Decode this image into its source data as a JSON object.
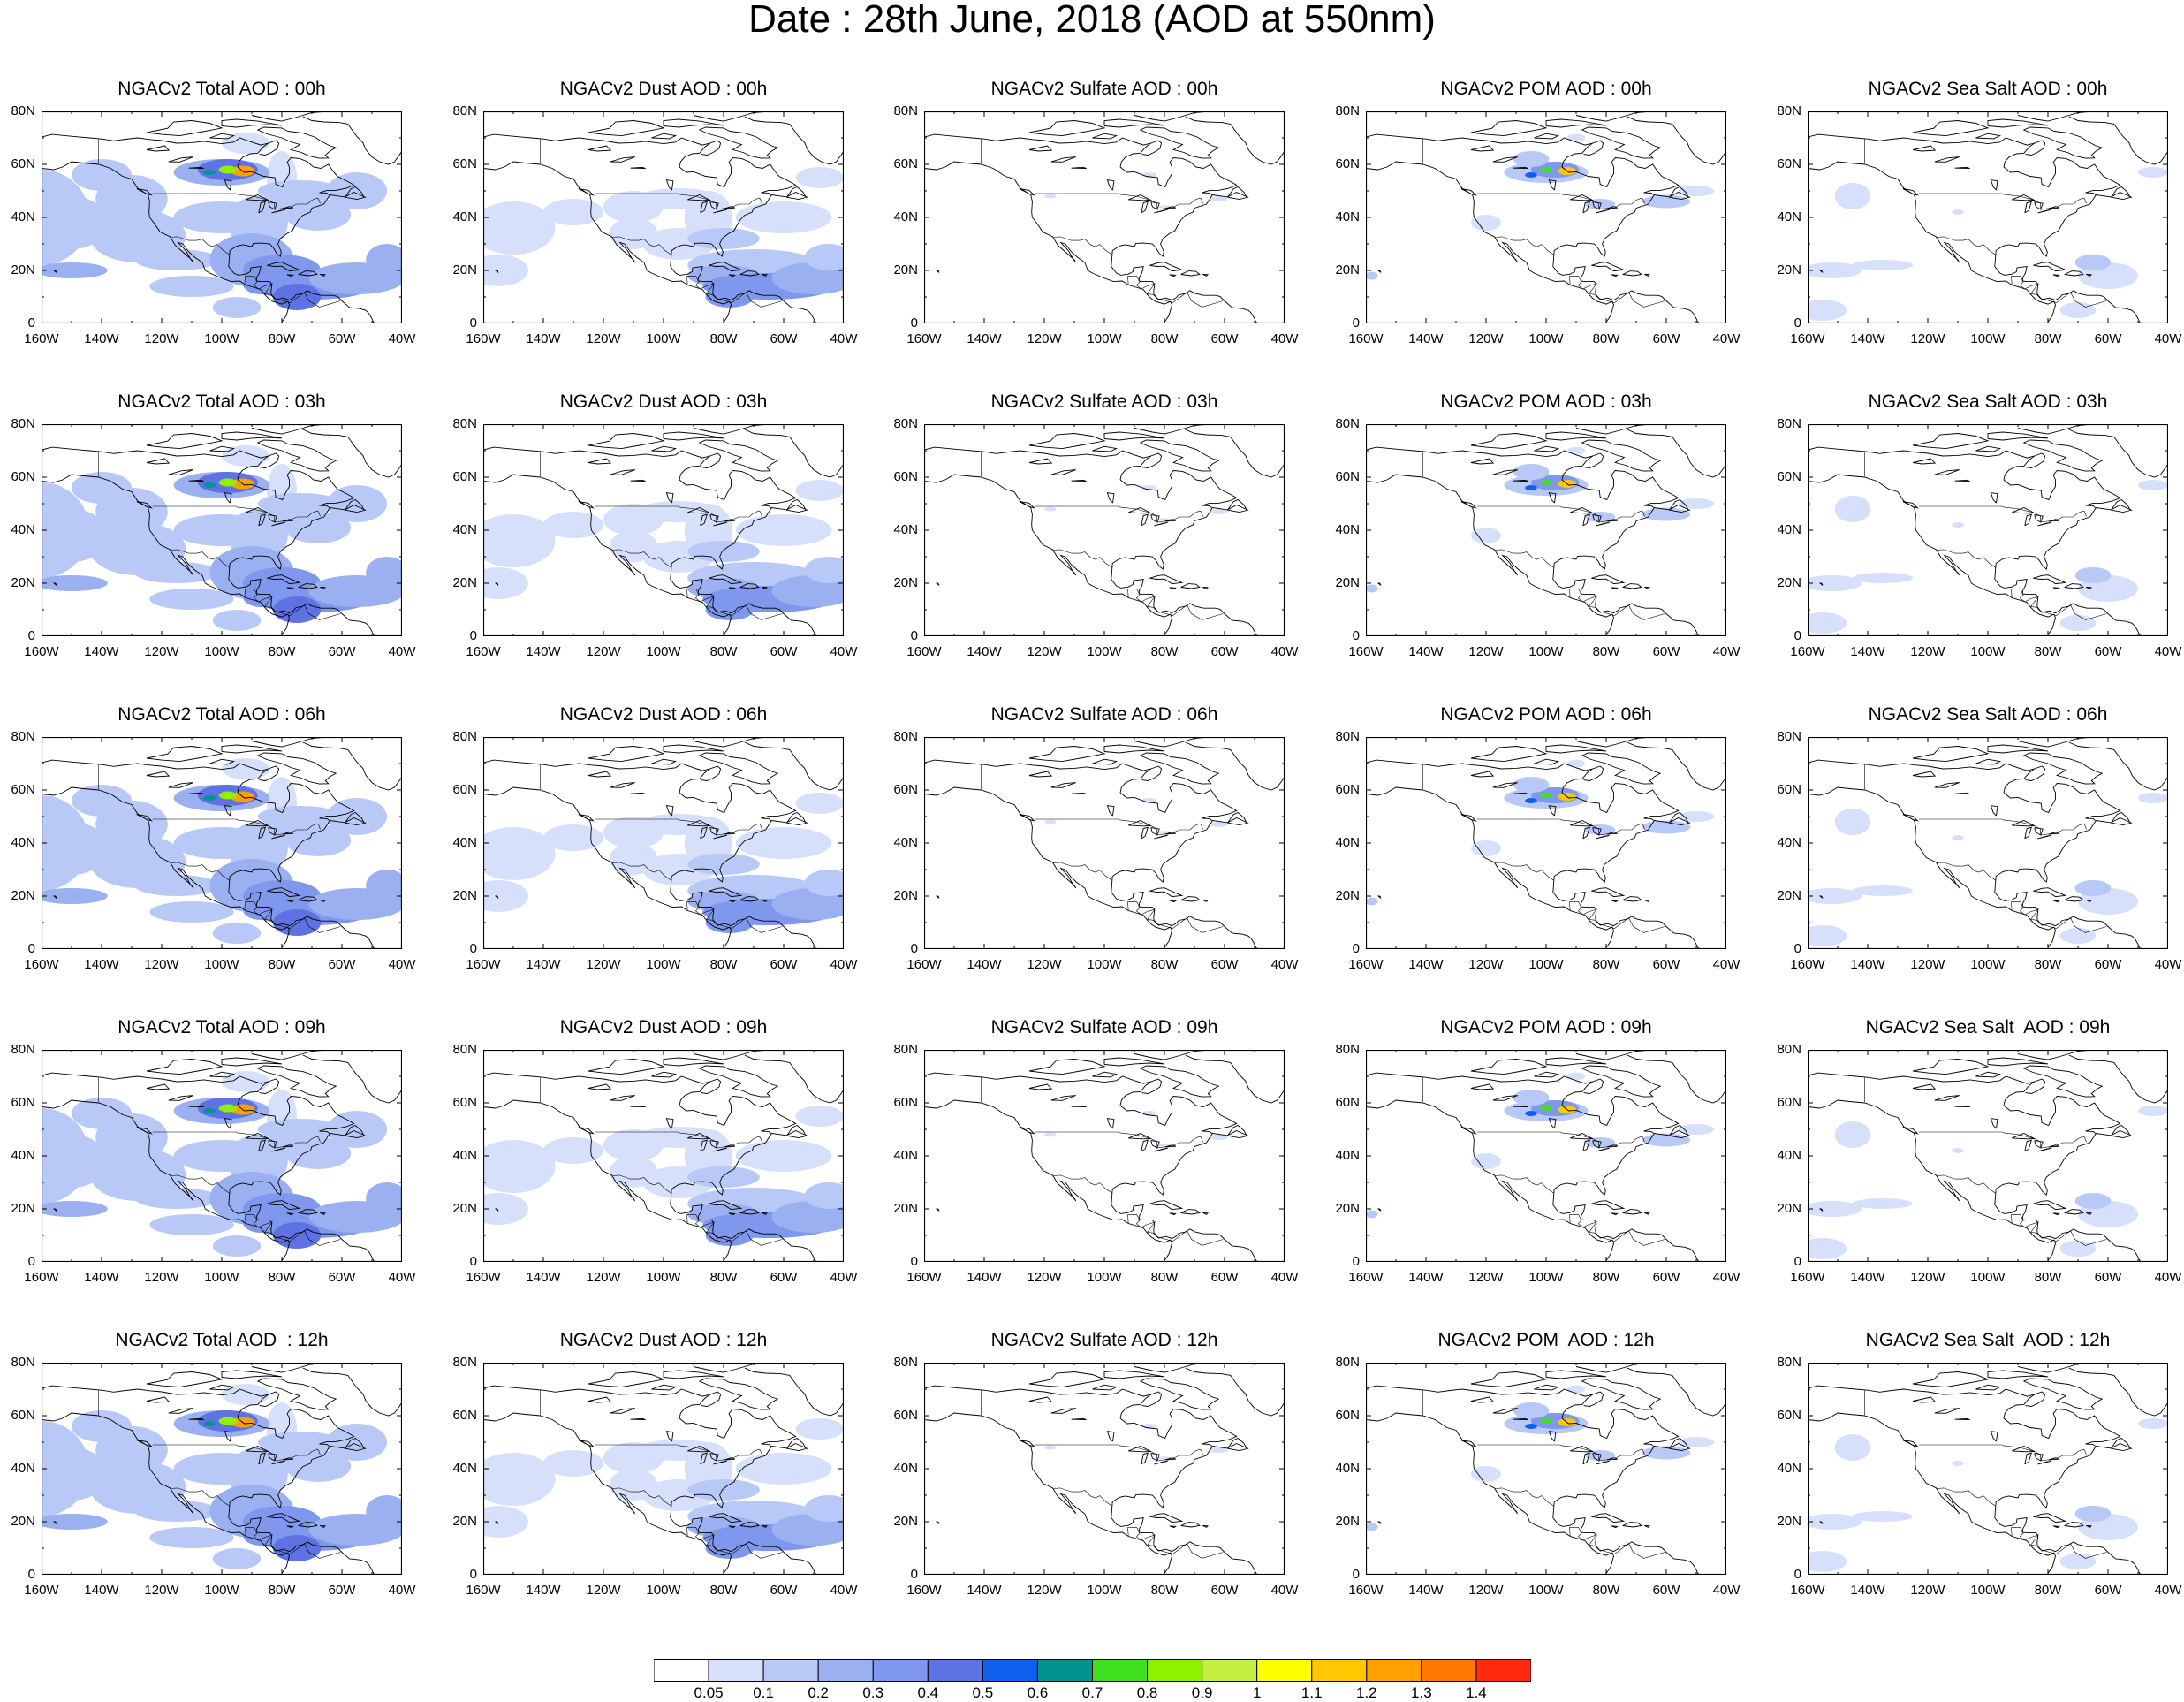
{
  "title": "Date : 28th June, 2018 (AOD at 550nm)",
  "x_tick_labels": [
    "160W",
    "140W",
    "120W",
    "100W",
    "80W",
    "60W",
    "40W"
  ],
  "y_tick_labels": [
    "0",
    "20N",
    "40N",
    "60N",
    "80N"
  ],
  "map_extent": {
    "lon": [
      -160,
      -40
    ],
    "lat": [
      0,
      80
    ]
  },
  "panels": [
    [
      {
        "title": "NGACv2 Total AOD : 00h",
        "species": "total"
      },
      {
        "title": "NGACv2 Dust AOD : 00h",
        "species": "dust"
      },
      {
        "title": "NGACv2 Sulfate AOD : 00h",
        "species": "sulfate"
      },
      {
        "title": "NGACv2 POM AOD : 00h",
        "species": "pom"
      },
      {
        "title": "NGACv2 Sea Salt AOD : 00h",
        "species": "seasalt"
      }
    ],
    [
      {
        "title": "NGACv2 Total AOD : 03h",
        "species": "total"
      },
      {
        "title": "NGACv2 Dust AOD : 03h",
        "species": "dust"
      },
      {
        "title": "NGACv2 Sulfate AOD : 03h",
        "species": "sulfate"
      },
      {
        "title": "NGACv2 POM AOD : 03h",
        "species": "pom"
      },
      {
        "title": "NGACv2 Sea Salt AOD : 03h",
        "species": "seasalt"
      }
    ],
    [
      {
        "title": "NGACv2 Total AOD : 06h",
        "species": "total"
      },
      {
        "title": "NGACv2 Dust AOD : 06h",
        "species": "dust"
      },
      {
        "title": "NGACv2 Sulfate AOD : 06h",
        "species": "sulfate"
      },
      {
        "title": "NGACv2 POM AOD : 06h",
        "species": "pom"
      },
      {
        "title": "NGACv2 Sea Salt AOD : 06h",
        "species": "seasalt"
      }
    ],
    [
      {
        "title": "NGACv2 Total AOD : 09h",
        "species": "total"
      },
      {
        "title": "NGACv2 Dust AOD : 09h",
        "species": "dust"
      },
      {
        "title": "NGACv2 Sulfate AOD : 09h",
        "species": "sulfate"
      },
      {
        "title": "NGACv2 POM AOD : 09h",
        "species": "pom"
      },
      {
        "title": "NGACv2 Sea Salt  AOD : 09h",
        "species": "seasalt"
      }
    ],
    [
      {
        "title": "NGACv2 Total AOD  : 12h",
        "species": "total"
      },
      {
        "title": "NGACv2 Dust AOD : 12h",
        "species": "dust"
      },
      {
        "title": "NGACv2 Sulfate AOD : 12h",
        "species": "sulfate"
      },
      {
        "title": "NGACv2 POM  AOD : 12h",
        "species": "pom"
      },
      {
        "title": "NGACv2 Sea Salt  AOD : 12h",
        "species": "seasalt"
      }
    ]
  ],
  "colorbar": {
    "labels": [
      "0.05",
      "0.1",
      "0.2",
      "0.3",
      "0.4",
      "0.5",
      "0.6",
      "0.7",
      "0.8",
      "0.9",
      "1",
      "1.1",
      "1.2",
      "1.3",
      "1.4"
    ],
    "colors": [
      "#ffffff",
      "#d6e0fb",
      "#b8c8f7",
      "#9bb0f1",
      "#7f98ed",
      "#5f72e4",
      "#1060f0",
      "#00938f",
      "#40e020",
      "#8ff000",
      "#c4f040",
      "#ffff00",
      "#ffc800",
      "#ffa000",
      "#ff7800",
      "#ff2a10"
    ]
  }
}
